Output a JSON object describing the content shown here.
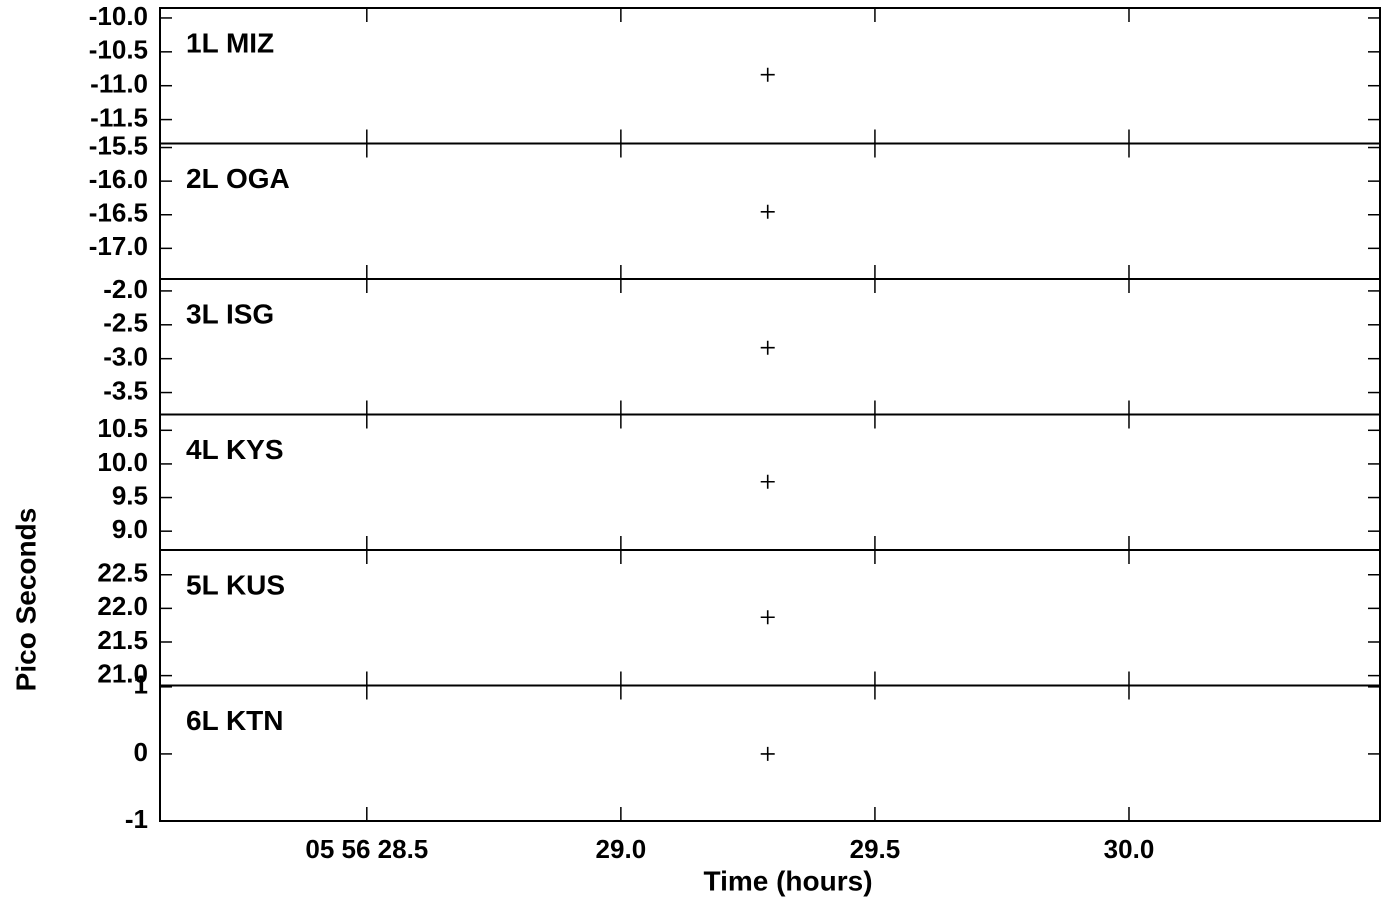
{
  "chart_data": [
    {
      "type": "scatter",
      "label": "1L MIZ",
      "ylabel": "Pico Seconds",
      "x": [
        29.289
      ],
      "values": [
        -10.838
      ],
      "xlim": [
        28.093,
        30.494
      ],
      "xticks": [
        28.5,
        29,
        29.5,
        30
      ],
      "ylim": [
        -11.853,
        -9.853
      ],
      "yticks": [
        {
          "value": -10,
          "label": "-10.0"
        },
        -10.5,
        {
          "value": -11,
          "label": "-11.0"
        },
        -11.5
      ]
    },
    {
      "type": "scatter",
      "label": "2L OGA",
      "x": [
        29.289
      ],
      "values": [
        -16.456
      ],
      "xlim": [
        28.093,
        30.494
      ],
      "xticks": [
        28.5,
        29,
        29.5,
        30
      ],
      "ylim": [
        -17.456,
        -15.44
      ],
      "yticks": [
        -15.5,
        {
          "value": -16,
          "label": "-16.0"
        },
        -16.5,
        {
          "value": -17,
          "label": "-17.0"
        }
      ]
    },
    {
      "type": "scatter",
      "label": "3L ISG",
      "x": [
        29.289
      ],
      "values": [
        -2.838
      ],
      "xlim": [
        28.093,
        30.494
      ],
      "xticks": [
        28.5,
        29,
        29.5,
        30
      ],
      "ylim": [
        -3.824,
        -1.824
      ],
      "yticks": [
        {
          "value": -2,
          "label": "-2.0"
        },
        -2.5,
        {
          "value": -3,
          "label": "-3.0"
        },
        -3.5
      ]
    },
    {
      "type": "scatter",
      "label": "4L KYS",
      "x": [
        29.289
      ],
      "values": [
        9.735
      ],
      "xlim": [
        28.093,
        30.494
      ],
      "xticks": [
        28.5,
        29,
        29.5,
        30
      ],
      "ylim": [
        8.72,
        10.735
      ],
      "yticks": [
        10.5,
        {
          "value": 10,
          "label": "10.0"
        },
        9.5,
        {
          "value": 9,
          "label": "9.0"
        }
      ]
    },
    {
      "type": "scatter",
      "label": "5L KUS",
      "x": [
        29.289
      ],
      "values": [
        21.868
      ],
      "xlim": [
        28.093,
        30.494
      ],
      "xticks": [
        28.5,
        29,
        29.5,
        30
      ],
      "ylim": [
        20.853,
        22.868
      ],
      "yticks": [
        22.5,
        {
          "value": 22,
          "label": "22.0"
        },
        21.5,
        {
          "value": 21,
          "label": "21.0"
        }
      ]
    },
    {
      "type": "scatter",
      "label": "6L KTN",
      "xlabel": "Time (hours)",
      "x": [
        29.289
      ],
      "values": [
        0
      ],
      "xlim": [
        28.093,
        30.494
      ],
      "xticks": [
        {
          "value": 28.5,
          "label": "05 56 28.5"
        },
        {
          "value": 29,
          "label": "29.0"
        },
        {
          "value": 29.5,
          "label": "29.5"
        },
        {
          "value": 30,
          "label": "30.0"
        }
      ],
      "ylim": [
        -1,
        1.02
      ],
      "yticks": [
        1,
        0,
        -1
      ]
    }
  ]
}
